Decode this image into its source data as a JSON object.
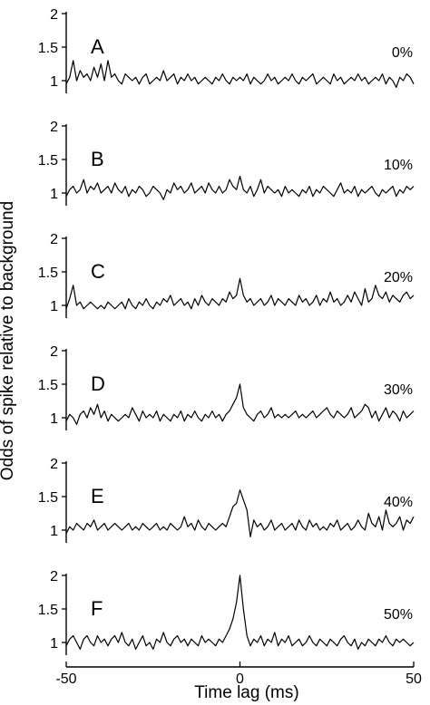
{
  "figure": {
    "ylabel": "Odds of spike relative to background",
    "xlabel": "Time lag (ms)"
  },
  "chart_data": [
    {
      "type": "line",
      "panel_label": "A",
      "percent_label": "0%",
      "x": [
        -50,
        -49,
        -48,
        -47,
        -46,
        -45,
        -44,
        -43,
        -42,
        -41,
        -40,
        -39,
        -38,
        -37,
        -36,
        -35,
        -34,
        -33,
        -32,
        -31,
        -30,
        -29,
        -28,
        -27,
        -26,
        -25,
        -24,
        -23,
        -22,
        -21,
        -20,
        -19,
        -18,
        -17,
        -16,
        -15,
        -14,
        -13,
        -12,
        -11,
        -10,
        -9,
        -8,
        -7,
        -6,
        -5,
        -4,
        -3,
        -2,
        -1,
        0,
        1,
        2,
        3,
        4,
        5,
        6,
        7,
        8,
        9,
        10,
        11,
        12,
        13,
        14,
        15,
        16,
        17,
        18,
        19,
        20,
        21,
        22,
        23,
        24,
        25,
        26,
        27,
        28,
        29,
        30,
        31,
        32,
        33,
        34,
        35,
        36,
        37,
        38,
        39,
        40,
        41,
        42,
        43,
        44,
        45,
        46,
        47,
        48,
        49,
        50
      ],
      "values": [
        0.95,
        1.05,
        1.3,
        1.0,
        1.15,
        1.05,
        1.1,
        1.0,
        1.2,
        1.05,
        1.25,
        1.0,
        1.3,
        1.05,
        1.1,
        1.0,
        0.95,
        1.1,
        1.05,
        1.0,
        1.05,
        0.95,
        1.05,
        1.1,
        0.95,
        1.0,
        1.05,
        1.0,
        1.15,
        1.0,
        1.05,
        1.1,
        0.95,
        1.05,
        1.0,
        1.1,
        1.0,
        1.05,
        0.95,
        1.0,
        1.05,
        1.0,
        0.95,
        1.05,
        1.0,
        1.1,
        1.0,
        0.95,
        1.05,
        1.0,
        1.05,
        1.0,
        1.1,
        0.95,
        1.05,
        1.0,
        0.95,
        1.0,
        1.1,
        1.0,
        1.05,
        0.95,
        1.0,
        1.05,
        1.0,
        1.1,
        1.0,
        0.95,
        1.05,
        1.0,
        1.05,
        1.1,
        0.95,
        1.0,
        1.05,
        1.0,
        0.95,
        1.1,
        1.0,
        1.05,
        0.95,
        1.0,
        1.05,
        1.0,
        1.1,
        1.0,
        1.05,
        0.95,
        1.0,
        1.05,
        1.0,
        1.1,
        0.95,
        1.05,
        1.0,
        0.9,
        1.05,
        1.0,
        1.1,
        1.05,
        0.95
      ],
      "ylim": [
        1,
        2
      ],
      "xlim": [
        -50,
        50
      ]
    },
    {
      "type": "line",
      "panel_label": "B",
      "percent_label": "10%",
      "x": [
        -50,
        -49,
        -48,
        -47,
        -46,
        -45,
        -44,
        -43,
        -42,
        -41,
        -40,
        -39,
        -38,
        -37,
        -36,
        -35,
        -34,
        -33,
        -32,
        -31,
        -30,
        -29,
        -28,
        -27,
        -26,
        -25,
        -24,
        -23,
        -22,
        -21,
        -20,
        -19,
        -18,
        -17,
        -16,
        -15,
        -14,
        -13,
        -12,
        -11,
        -10,
        -9,
        -8,
        -7,
        -6,
        -5,
        -4,
        -3,
        -2,
        -1,
        0,
        1,
        2,
        3,
        4,
        5,
        6,
        7,
        8,
        9,
        10,
        11,
        12,
        13,
        14,
        15,
        16,
        17,
        18,
        19,
        20,
        21,
        22,
        23,
        24,
        25,
        26,
        27,
        28,
        29,
        30,
        31,
        32,
        33,
        34,
        35,
        36,
        37,
        38,
        39,
        40,
        41,
        42,
        43,
        44,
        45,
        46,
        47,
        48,
        49,
        50
      ],
      "values": [
        0.95,
        1.05,
        1.1,
        1.0,
        1.05,
        1.2,
        1.0,
        1.1,
        1.05,
        1.15,
        1.0,
        1.05,
        1.1,
        1.0,
        1.15,
        1.05,
        1.0,
        1.1,
        0.95,
        1.05,
        1.0,
        1.1,
        1.05,
        0.95,
        1.0,
        1.1,
        1.05,
        1.0,
        0.9,
        1.05,
        1.0,
        1.15,
        1.05,
        1.1,
        1.0,
        1.05,
        1.15,
        1.0,
        1.05,
        1.1,
        1.0,
        1.15,
        1.05,
        1.0,
        1.1,
        1.0,
        1.05,
        1.2,
        1.1,
        1.05,
        1.25,
        1.05,
        1.0,
        1.1,
        0.95,
        1.05,
        1.2,
        1.0,
        1.1,
        1.05,
        1.0,
        1.05,
        0.95,
        1.1,
        1.0,
        1.05,
        1.0,
        0.95,
        1.05,
        1.0,
        1.1,
        0.95,
        1.05,
        1.0,
        1.1,
        1.05,
        1.0,
        0.95,
        1.05,
        1.15,
        1.0,
        1.05,
        1.0,
        1.1,
        0.95,
        1.05,
        1.0,
        1.05,
        1.1,
        1.0,
        0.95,
        1.05,
        1.0,
        1.05,
        1.1,
        0.95,
        1.05,
        1.0,
        1.1,
        1.05,
        1.1
      ],
      "ylim": [
        1,
        2
      ],
      "xlim": [
        -50,
        50
      ]
    },
    {
      "type": "line",
      "panel_label": "C",
      "percent_label": "20%",
      "x": [
        -50,
        -49,
        -48,
        -47,
        -46,
        -45,
        -44,
        -43,
        -42,
        -41,
        -40,
        -39,
        -38,
        -37,
        -36,
        -35,
        -34,
        -33,
        -32,
        -31,
        -30,
        -29,
        -28,
        -27,
        -26,
        -25,
        -24,
        -23,
        -22,
        -21,
        -20,
        -19,
        -18,
        -17,
        -16,
        -15,
        -14,
        -13,
        -12,
        -11,
        -10,
        -9,
        -8,
        -7,
        -6,
        -5,
        -4,
        -3,
        -2,
        -1,
        0,
        1,
        2,
        3,
        4,
        5,
        6,
        7,
        8,
        9,
        10,
        11,
        12,
        13,
        14,
        15,
        16,
        17,
        18,
        19,
        20,
        21,
        22,
        23,
        24,
        25,
        26,
        27,
        28,
        29,
        30,
        31,
        32,
        33,
        34,
        35,
        36,
        37,
        38,
        39,
        40,
        41,
        42,
        43,
        44,
        45,
        46,
        47,
        48,
        49,
        50
      ],
      "values": [
        0.95,
        1.1,
        1.3,
        1.0,
        1.05,
        0.95,
        1.0,
        1.05,
        1.0,
        0.95,
        1.0,
        0.95,
        1.05,
        1.0,
        0.95,
        1.0,
        1.05,
        0.95,
        1.1,
        1.0,
        0.95,
        1.05,
        1.0,
        1.1,
        1.0,
        0.95,
        1.05,
        1.0,
        1.1,
        1.05,
        1.15,
        1.0,
        1.05,
        1.1,
        1.0,
        1.05,
        0.95,
        1.1,
        1.0,
        1.15,
        1.05,
        1.0,
        1.1,
        1.05,
        1.0,
        1.1,
        1.05,
        1.2,
        1.1,
        1.15,
        1.4,
        1.15,
        1.05,
        1.1,
        1.0,
        1.05,
        1.1,
        1.0,
        1.05,
        1.15,
        1.0,
        1.1,
        1.05,
        1.0,
        1.1,
        1.05,
        1.0,
        1.15,
        1.05,
        1.1,
        1.0,
        1.05,
        1.15,
        1.0,
        1.1,
        1.05,
        1.2,
        1.05,
        1.1,
        1.0,
        1.05,
        1.15,
        1.05,
        1.2,
        1.1,
        1.0,
        1.25,
        1.05,
        1.1,
        1.3,
        1.15,
        1.1,
        1.2,
        1.05,
        1.15,
        1.1,
        1.05,
        1.15,
        1.2,
        1.1,
        1.15
      ],
      "ylim": [
        1,
        2
      ],
      "xlim": [
        -50,
        50
      ]
    },
    {
      "type": "line",
      "panel_label": "D",
      "percent_label": "30%",
      "x": [
        -50,
        -49,
        -48,
        -47,
        -46,
        -45,
        -44,
        -43,
        -42,
        -41,
        -40,
        -39,
        -38,
        -37,
        -36,
        -35,
        -34,
        -33,
        -32,
        -31,
        -30,
        -29,
        -28,
        -27,
        -26,
        -25,
        -24,
        -23,
        -22,
        -21,
        -20,
        -19,
        -18,
        -17,
        -16,
        -15,
        -14,
        -13,
        -12,
        -11,
        -10,
        -9,
        -8,
        -7,
        -6,
        -5,
        -4,
        -3,
        -2,
        -1,
        0,
        1,
        2,
        3,
        4,
        5,
        6,
        7,
        8,
        9,
        10,
        11,
        12,
        13,
        14,
        15,
        16,
        17,
        18,
        19,
        20,
        21,
        22,
        23,
        24,
        25,
        26,
        27,
        28,
        29,
        30,
        31,
        32,
        33,
        34,
        35,
        36,
        37,
        38,
        39,
        40,
        41,
        42,
        43,
        44,
        45,
        46,
        47,
        48,
        49,
        50
      ],
      "values": [
        0.95,
        1.05,
        1.0,
        0.9,
        1.05,
        1.1,
        1.0,
        1.15,
        1.05,
        1.2,
        1.0,
        1.1,
        0.95,
        1.05,
        1.0,
        0.95,
        1.0,
        1.05,
        1.0,
        1.15,
        1.05,
        0.95,
        1.1,
        1.0,
        1.05,
        1.0,
        1.1,
        0.95,
        1.05,
        1.0,
        0.95,
        1.05,
        1.0,
        1.1,
        0.95,
        1.05,
        1.0,
        1.1,
        1.0,
        0.95,
        1.05,
        1.0,
        1.1,
        1.0,
        1.05,
        0.95,
        1.05,
        1.1,
        1.2,
        1.3,
        1.5,
        1.15,
        1.05,
        1.0,
        0.95,
        1.05,
        1.1,
        1.0,
        1.05,
        1.15,
        1.0,
        1.05,
        1.0,
        1.05,
        1.0,
        1.05,
        1.1,
        1.0,
        1.05,
        1.0,
        1.05,
        1.1,
        1.0,
        1.05,
        1.1,
        1.15,
        1.05,
        1.0,
        1.1,
        1.05,
        1.0,
        1.05,
        1.15,
        1.0,
        1.05,
        1.1,
        1.2,
        1.15,
        1.0,
        1.1,
        0.95,
        1.05,
        1.15,
        1.0,
        1.1,
        1.05,
        0.95,
        1.1,
        1.0,
        1.05,
        1.1
      ],
      "ylim": [
        1,
        2
      ],
      "xlim": [
        -50,
        50
      ]
    },
    {
      "type": "line",
      "panel_label": "E",
      "percent_label": "40%",
      "x": [
        -50,
        -49,
        -48,
        -47,
        -46,
        -45,
        -44,
        -43,
        -42,
        -41,
        -40,
        -39,
        -38,
        -37,
        -36,
        -35,
        -34,
        -33,
        -32,
        -31,
        -30,
        -29,
        -28,
        -27,
        -26,
        -25,
        -24,
        -23,
        -22,
        -21,
        -20,
        -19,
        -18,
        -17,
        -16,
        -15,
        -14,
        -13,
        -12,
        -11,
        -10,
        -9,
        -8,
        -7,
        -6,
        -5,
        -4,
        -3,
        -2,
        -1,
        0,
        1,
        2,
        3,
        4,
        5,
        6,
        7,
        8,
        9,
        10,
        11,
        12,
        13,
        14,
        15,
        16,
        17,
        18,
        19,
        20,
        21,
        22,
        23,
        24,
        25,
        26,
        27,
        28,
        29,
        30,
        31,
        32,
        33,
        34,
        35,
        36,
        37,
        38,
        39,
        40,
        41,
        42,
        43,
        44,
        45,
        46,
        47,
        48,
        49,
        50
      ],
      "values": [
        0.95,
        1.05,
        1.0,
        1.1,
        1.05,
        1.0,
        1.1,
        1.05,
        1.15,
        1.0,
        1.05,
        1.1,
        1.0,
        1.05,
        1.1,
        1.05,
        1.0,
        1.05,
        1.1,
        1.0,
        1.05,
        1.0,
        1.1,
        1.05,
        1.0,
        1.05,
        1.1,
        1.0,
        1.05,
        1.0,
        1.1,
        1.05,
        1.0,
        1.05,
        1.2,
        1.05,
        1.1,
        1.0,
        1.15,
        1.05,
        1.0,
        1.1,
        1.05,
        1.0,
        1.05,
        1.1,
        1.05,
        1.2,
        1.35,
        1.4,
        1.6,
        1.45,
        1.3,
        0.9,
        1.15,
        1.05,
        1.1,
        1.0,
        1.05,
        1.15,
        1.0,
        1.05,
        1.1,
        1.0,
        1.05,
        1.1,
        1.0,
        1.15,
        1.05,
        1.0,
        1.15,
        1.05,
        1.1,
        1.0,
        1.05,
        1.0,
        1.1,
        1.05,
        1.15,
        1.0,
        1.05,
        1.1,
        1.0,
        1.05,
        1.15,
        1.05,
        1.0,
        1.25,
        1.1,
        1.05,
        1.2,
        1.0,
        1.3,
        1.1,
        1.05,
        1.1,
        1.2,
        1.0,
        1.15,
        1.1,
        1.2
      ],
      "ylim": [
        1,
        2
      ],
      "xlim": [
        -50,
        50
      ]
    },
    {
      "type": "line",
      "panel_label": "F",
      "percent_label": "50%",
      "x": [
        -50,
        -49,
        -48,
        -47,
        -46,
        -45,
        -44,
        -43,
        -42,
        -41,
        -40,
        -39,
        -38,
        -37,
        -36,
        -35,
        -34,
        -33,
        -32,
        -31,
        -30,
        -29,
        -28,
        -27,
        -26,
        -25,
        -24,
        -23,
        -22,
        -21,
        -20,
        -19,
        -18,
        -17,
        -16,
        -15,
        -14,
        -13,
        -12,
        -11,
        -10,
        -9,
        -8,
        -7,
        -6,
        -5,
        -4,
        -3,
        -2,
        -1,
        0,
        1,
        2,
        3,
        4,
        5,
        6,
        7,
        8,
        9,
        10,
        11,
        12,
        13,
        14,
        15,
        16,
        17,
        18,
        19,
        20,
        21,
        22,
        23,
        24,
        25,
        26,
        27,
        28,
        29,
        30,
        31,
        32,
        33,
        34,
        35,
        36,
        37,
        38,
        39,
        40,
        41,
        42,
        43,
        44,
        45,
        46,
        47,
        48,
        49,
        50
      ],
      "values": [
        0.95,
        1.05,
        1.1,
        1.0,
        0.9,
        1.05,
        1.1,
        1.0,
        0.95,
        1.1,
        1.0,
        1.05,
        0.95,
        1.05,
        1.1,
        1.0,
        1.15,
        1.0,
        0.95,
        1.05,
        0.9,
        1.0,
        1.1,
        0.95,
        1.0,
        0.9,
        1.05,
        1.0,
        1.15,
        1.0,
        0.95,
        1.05,
        1.1,
        1.0,
        1.05,
        0.95,
        1.05,
        1.0,
        0.95,
        1.1,
        1.0,
        1.05,
        1.0,
        0.95,
        1.05,
        1.0,
        1.1,
        1.2,
        1.35,
        1.6,
        2.0,
        1.5,
        1.1,
        0.95,
        1.05,
        1.0,
        1.1,
        0.95,
        1.05,
        1.0,
        1.15,
        0.95,
        1.05,
        1.0,
        1.1,
        0.95,
        1.0,
        1.05,
        0.95,
        1.0,
        1.1,
        1.0,
        0.95,
        1.05,
        1.0,
        0.95,
        1.05,
        1.0,
        0.95,
        1.05,
        1.1,
        1.0,
        0.95,
        1.05,
        0.9,
        1.0,
        0.95,
        1.05,
        1.0,
        0.95,
        1.05,
        1.0,
        1.1,
        1.0,
        0.95,
        1.05,
        1.0,
        1.05,
        1.0,
        0.95,
        1.0
      ],
      "ylim": [
        1,
        2
      ],
      "xlim": [
        -50,
        50
      ]
    }
  ],
  "y_tick_labels": [
    "1",
    "1.5",
    "2"
  ],
  "x_tick_labels": [
    "-50",
    "0",
    "50"
  ]
}
